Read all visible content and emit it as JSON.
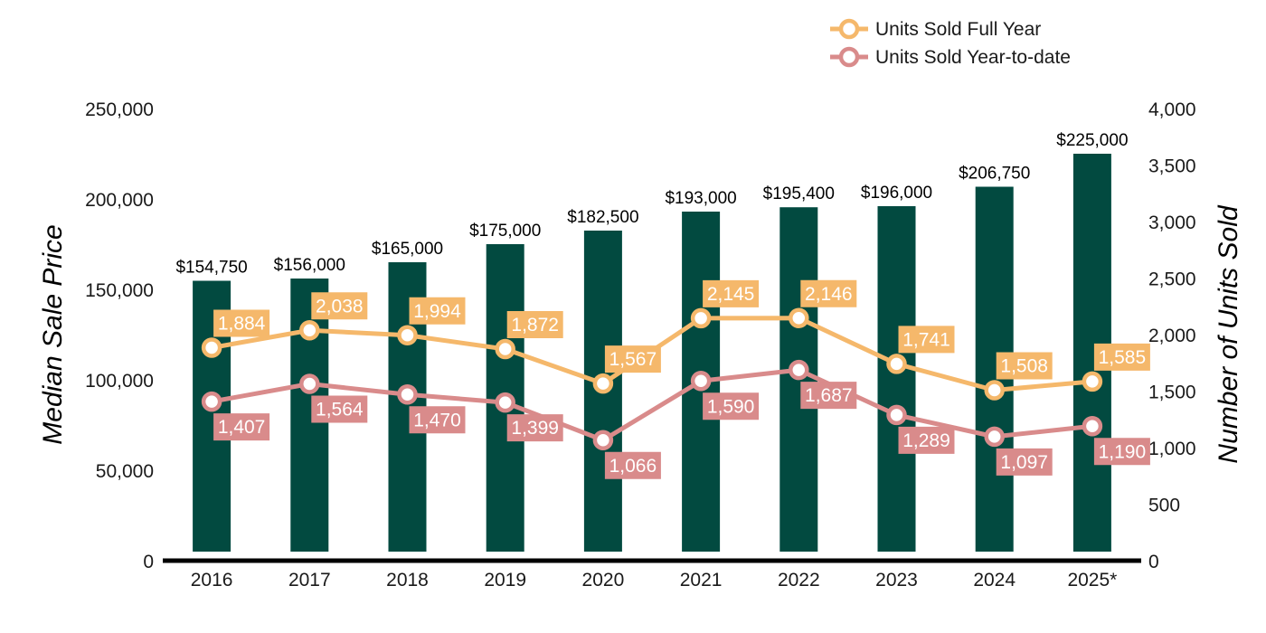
{
  "chart_data": {
    "type": "bar",
    "categories": [
      "2016",
      "2017",
      "2018",
      "2019",
      "2020",
      "2021",
      "2022",
      "2023",
      "2024",
      "2025*"
    ],
    "bars": {
      "values": [
        154750,
        156000,
        165000,
        175000,
        182500,
        193000,
        195400,
        196000,
        206750,
        225000
      ],
      "labels": [
        "$154,750",
        "$156,000",
        "$165,000",
        "$175,000",
        "$182,500",
        "$193,000",
        "$195,400",
        "$196,000",
        "$206,750",
        "$225,000"
      ],
      "color": "#024a40"
    },
    "series": [
      {
        "name": "Units Sold Full Year",
        "type": "line",
        "axis": "right",
        "values": [
          1884,
          2038,
          1994,
          1872,
          1567,
          2145,
          2146,
          1741,
          1508,
          1585
        ],
        "labels": [
          "1,884",
          "2,038",
          "1,994",
          "1,872",
          "1,567",
          "2,145",
          "2,146",
          "1,741",
          "1,508",
          "1,585"
        ],
        "color": "#f5b86b",
        "label_position": "above"
      },
      {
        "name": "Units Sold Year-to-date",
        "type": "line",
        "axis": "right",
        "values": [
          1407,
          1564,
          1470,
          1399,
          1066,
          1590,
          1687,
          1289,
          1097,
          1190
        ],
        "labels": [
          "1,407",
          "1,564",
          "1,470",
          "1,399",
          "1,066",
          "1,590",
          "1,687",
          "1,289",
          "1,097",
          "1,190"
        ],
        "color": "#d98b8b",
        "label_position": "below"
      }
    ],
    "ylabel": "Median Sale Price",
    "y2label": "Number of Units Sold",
    "ylim": [
      0,
      250000
    ],
    "y2lim": [
      0,
      4000
    ],
    "yticks": [
      "0",
      "50,000",
      "100,000",
      "150,000",
      "200,000",
      "250,000"
    ],
    "y2ticks": [
      "0",
      "500",
      "1,000",
      "1,500",
      "2,000",
      "2,500",
      "3,000",
      "3,500",
      "4,000"
    ],
    "grid": false,
    "legend": "top-right"
  }
}
